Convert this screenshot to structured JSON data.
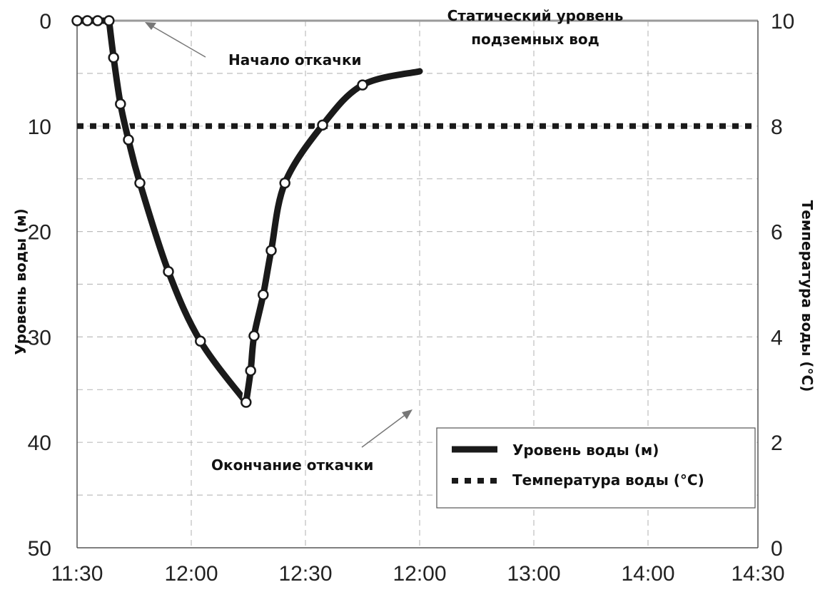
{
  "chart_data": {
    "type": "line",
    "x_ticks": [
      "11:30",
      "12:00",
      "12:30",
      "12:00",
      "13:00",
      "14:00",
      "14:30"
    ],
    "y_left": {
      "label": "Уровень воды (м)",
      "ticks": [
        0,
        10,
        20,
        30,
        40,
        50
      ],
      "range": [
        0,
        50
      ],
      "inverted": true
    },
    "y_right": {
      "label": "Температура воды (°C)",
      "ticks": [
        0,
        2,
        4,
        6,
        8,
        10
      ],
      "range": [
        0,
        10
      ]
    },
    "grid": true,
    "legend": {
      "placement": "bottom-right",
      "entries": [
        "Уровень воды (м)",
        "Температура воды (°C)"
      ]
    },
    "annotations": {
      "static_level": "Статический уровень подземных вод",
      "static_level_line1": "Статический уровень",
      "static_level_line2": "подземных вод",
      "pump_start": "Начало откачки",
      "pump_end": "Окончание откачки"
    },
    "series": [
      {
        "name": "Уровень воды (м)",
        "style": "solid",
        "axis": "left",
        "x_pos": [
          0,
          0.09,
          0.18,
          0.28,
          0.32,
          0.38,
          0.45,
          0.55,
          0.8,
          1.08,
          1.48,
          1.48,
          1.52,
          1.55,
          1.63,
          1.7,
          1.82,
          2.15,
          2.5,
          3.0
        ],
        "values": [
          0,
          0,
          0,
          0,
          3.5,
          7.9,
          11.3,
          15.4,
          23.8,
          30.4,
          36.2,
          36.2,
          33.2,
          29.9,
          26.0,
          21.8,
          15.4,
          9.9,
          6.1,
          4.8
        ],
        "markers": [
          true,
          true,
          true,
          true,
          true,
          true,
          true,
          true,
          true,
          true,
          true,
          false,
          true,
          true,
          true,
          true,
          true,
          true,
          true,
          false
        ]
      },
      {
        "name": "Температура воды (°C)",
        "style": "dotted",
        "axis": "right",
        "x_pos": [
          0,
          3.0
        ],
        "values": [
          8,
          8
        ]
      }
    ],
    "colors": {
      "line": "#1a1a1a",
      "grid": "#bdbdbd",
      "marker_fill": "#ffffff",
      "static_line": "#9a9a9a"
    }
  }
}
